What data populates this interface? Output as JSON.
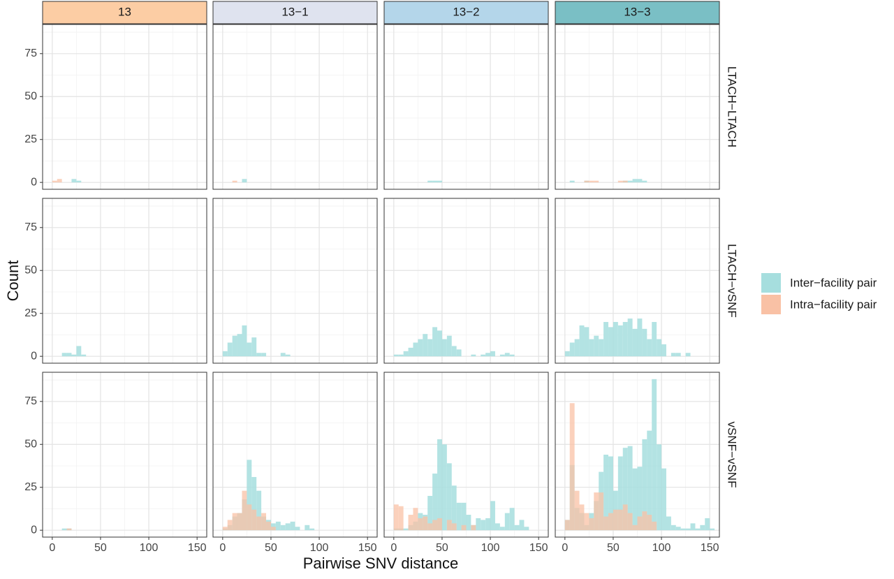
{
  "chart_data": {
    "type": "bar",
    "subtype": "faceted-histogram",
    "xlabel": "Pairwise SNV distance",
    "ylabel": "Count",
    "xlim": [
      -10,
      160
    ],
    "ylim": [
      -4,
      92
    ],
    "x_ticks": [
      0,
      50,
      100,
      150
    ],
    "y_ticks": [
      0,
      25,
      50,
      75
    ],
    "bin_width": 5,
    "grid": true,
    "legend_position": "right",
    "columns": [
      {
        "label": "13",
        "color": "#fccda4"
      },
      {
        "label": "13−1",
        "color": "#dfe3ef"
      },
      {
        "label": "13−2",
        "color": "#b4d6ea"
      },
      {
        "label": "13−3",
        "color": "#7abfc5"
      }
    ],
    "rows": [
      "LTACH−LTACH",
      "LTACH−vSNF",
      "vSNF−vSNF"
    ],
    "series": [
      {
        "name": "Inter-facility pair",
        "label": "Inter−facility pair",
        "color": "#a6dede"
      },
      {
        "name": "Intra-facility pair",
        "label": "Intra−facility pair",
        "color": "#f9c1a5"
      }
    ],
    "panels": [
      {
        "row": 0,
        "col": 0,
        "inter": [
          [
            20,
            2
          ],
          [
            25,
            1
          ]
        ],
        "intra": [
          [
            0,
            1
          ],
          [
            5,
            2
          ]
        ]
      },
      {
        "row": 0,
        "col": 1,
        "inter": [
          [
            20,
            2
          ]
        ],
        "intra": [
          [
            10,
            1
          ]
        ]
      },
      {
        "row": 0,
        "col": 2,
        "inter": [
          [
            35,
            1
          ],
          [
            40,
            1
          ],
          [
            45,
            1
          ]
        ],
        "intra": []
      },
      {
        "row": 0,
        "col": 3,
        "inter": [
          [
            5,
            1
          ],
          [
            20,
            1
          ],
          [
            60,
            1
          ],
          [
            65,
            1
          ],
          [
            70,
            2
          ],
          [
            75,
            2
          ],
          [
            80,
            1
          ]
        ],
        "intra": [
          [
            20,
            1
          ],
          [
            25,
            1
          ],
          [
            30,
            1
          ],
          [
            55,
            1
          ],
          [
            60,
            1
          ]
        ]
      },
      {
        "row": 1,
        "col": 0,
        "inter": [
          [
            10,
            2
          ],
          [
            15,
            2
          ],
          [
            20,
            1
          ],
          [
            25,
            6
          ],
          [
            30,
            1
          ]
        ],
        "intra": []
      },
      {
        "row": 1,
        "col": 1,
        "inter": [
          [
            0,
            3
          ],
          [
            5,
            8
          ],
          [
            10,
            12
          ],
          [
            15,
            13
          ],
          [
            20,
            18
          ],
          [
            25,
            8
          ],
          [
            30,
            11
          ],
          [
            35,
            2
          ],
          [
            40,
            2
          ],
          [
            60,
            2
          ],
          [
            65,
            1
          ]
        ],
        "intra": []
      },
      {
        "row": 1,
        "col": 2,
        "inter": [
          [
            0,
            1
          ],
          [
            5,
            1
          ],
          [
            10,
            3
          ],
          [
            15,
            5
          ],
          [
            20,
            8
          ],
          [
            25,
            10
          ],
          [
            30,
            13
          ],
          [
            35,
            10
          ],
          [
            40,
            17
          ],
          [
            45,
            15
          ],
          [
            50,
            10
          ],
          [
            55,
            12
          ],
          [
            60,
            6
          ],
          [
            65,
            4
          ],
          [
            80,
            1
          ],
          [
            90,
            1
          ],
          [
            95,
            2
          ],
          [
            100,
            3
          ],
          [
            110,
            1
          ],
          [
            115,
            2
          ],
          [
            120,
            1
          ]
        ],
        "intra": []
      },
      {
        "row": 1,
        "col": 3,
        "inter": [
          [
            0,
            3
          ],
          [
            5,
            8
          ],
          [
            10,
            10
          ],
          [
            15,
            18
          ],
          [
            20,
            17
          ],
          [
            25,
            10
          ],
          [
            30,
            12
          ],
          [
            35,
            10
          ],
          [
            40,
            20
          ],
          [
            45,
            17
          ],
          [
            50,
            20
          ],
          [
            55,
            18
          ],
          [
            60,
            20
          ],
          [
            65,
            22
          ],
          [
            70,
            16
          ],
          [
            75,
            22
          ],
          [
            80,
            16
          ],
          [
            85,
            10
          ],
          [
            90,
            20
          ],
          [
            95,
            10
          ],
          [
            100,
            7
          ],
          [
            110,
            2
          ],
          [
            115,
            2
          ],
          [
            125,
            2
          ]
        ],
        "intra": []
      },
      {
        "row": 2,
        "col": 0,
        "inter": [
          [
            10,
            1
          ],
          [
            15,
            1
          ]
        ],
        "intra": [
          [
            15,
            1
          ]
        ]
      },
      {
        "row": 2,
        "col": 1,
        "inter": [
          [
            0,
            1
          ],
          [
            5,
            3
          ],
          [
            10,
            8
          ],
          [
            15,
            10
          ],
          [
            20,
            18
          ],
          [
            25,
            41
          ],
          [
            30,
            31
          ],
          [
            35,
            23
          ],
          [
            40,
            8
          ],
          [
            45,
            6
          ],
          [
            50,
            4
          ],
          [
            55,
            5
          ],
          [
            60,
            3
          ],
          [
            65,
            4
          ],
          [
            70,
            5
          ],
          [
            75,
            2
          ],
          [
            85,
            3
          ],
          [
            90,
            1
          ]
        ],
        "intra": [
          [
            0,
            2
          ],
          [
            5,
            6
          ],
          [
            10,
            10
          ],
          [
            15,
            10
          ],
          [
            20,
            23
          ],
          [
            25,
            15
          ],
          [
            30,
            12
          ],
          [
            35,
            8
          ],
          [
            40,
            10
          ],
          [
            45,
            5
          ],
          [
            50,
            2
          ]
        ]
      },
      {
        "row": 2,
        "col": 2,
        "inter": [
          [
            0,
            1
          ],
          [
            5,
            1
          ],
          [
            10,
            1
          ],
          [
            15,
            3
          ],
          [
            20,
            5
          ],
          [
            25,
            10
          ],
          [
            30,
            9
          ],
          [
            35,
            20
          ],
          [
            40,
            33
          ],
          [
            45,
            53
          ],
          [
            50,
            50
          ],
          [
            55,
            39
          ],
          [
            60,
            26
          ],
          [
            65,
            16
          ],
          [
            70,
            16
          ],
          [
            75,
            9
          ],
          [
            80,
            3
          ],
          [
            85,
            7
          ],
          [
            90,
            6
          ],
          [
            95,
            7
          ],
          [
            100,
            17
          ],
          [
            105,
            4
          ],
          [
            110,
            2
          ],
          [
            115,
            10
          ],
          [
            120,
            13
          ],
          [
            125,
            3
          ],
          [
            130,
            6
          ],
          [
            135,
            2
          ]
        ],
        "intra": [
          [
            0,
            15
          ],
          [
            5,
            14
          ],
          [
            15,
            9
          ],
          [
            20,
            13
          ],
          [
            25,
            7
          ],
          [
            30,
            8
          ],
          [
            35,
            4
          ],
          [
            40,
            6
          ],
          [
            45,
            7
          ],
          [
            55,
            6
          ],
          [
            60,
            4
          ],
          [
            70,
            3
          ],
          [
            80,
            3
          ]
        ]
      },
      {
        "row": 2,
        "col": 3,
        "inter": [
          [
            0,
            6
          ],
          [
            5,
            38
          ],
          [
            10,
            13
          ],
          [
            15,
            10
          ],
          [
            20,
            3
          ],
          [
            25,
            10
          ],
          [
            30,
            17
          ],
          [
            35,
            34
          ],
          [
            40,
            44
          ],
          [
            45,
            43
          ],
          [
            50,
            23
          ],
          [
            55,
            43
          ],
          [
            60,
            48
          ],
          [
            65,
            49
          ],
          [
            70,
            36
          ],
          [
            75,
            37
          ],
          [
            80,
            53
          ],
          [
            85,
            58
          ],
          [
            90,
            88
          ],
          [
            95,
            50
          ],
          [
            100,
            36
          ],
          [
            105,
            8
          ],
          [
            110,
            3
          ],
          [
            115,
            2
          ],
          [
            120,
            1
          ],
          [
            125,
            1
          ],
          [
            130,
            4
          ],
          [
            135,
            1
          ],
          [
            140,
            3
          ],
          [
            145,
            7
          ],
          [
            150,
            1
          ]
        ],
        "intra": [
          [
            0,
            6
          ],
          [
            5,
            74
          ],
          [
            10,
            23
          ],
          [
            15,
            15
          ],
          [
            20,
            10
          ],
          [
            25,
            7
          ],
          [
            30,
            22
          ],
          [
            35,
            22
          ],
          [
            40,
            8
          ],
          [
            45,
            10
          ],
          [
            50,
            12
          ],
          [
            55,
            12
          ],
          [
            60,
            15
          ],
          [
            65,
            10
          ],
          [
            70,
            3
          ],
          [
            75,
            8
          ],
          [
            80,
            11
          ],
          [
            85,
            9
          ],
          [
            90,
            5
          ]
        ]
      }
    ]
  }
}
